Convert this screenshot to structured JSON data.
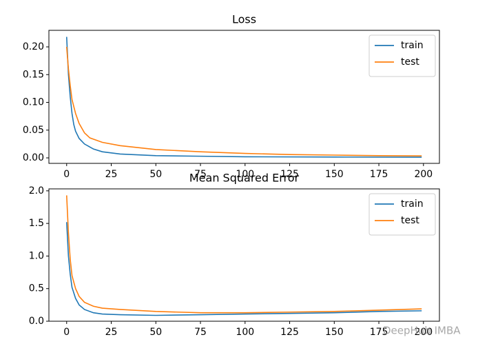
{
  "chart_data": [
    {
      "type": "line",
      "title": "Loss",
      "xlim": [
        -9.95,
        208.95
      ],
      "ylim": [
        -0.0099,
        0.2298
      ],
      "xticks": [
        0,
        25,
        50,
        75,
        100,
        125,
        150,
        175,
        200
      ],
      "yticks": [
        {
          "value": 0,
          "label": "0.00"
        },
        {
          "value": 0.05,
          "label": "0.05"
        },
        {
          "value": 0.1,
          "label": "0.10"
        },
        {
          "value": 0.15,
          "label": "0.15"
        },
        {
          "value": 0.2,
          "label": "0.20"
        }
      ],
      "legend": "upper right",
      "series": [
        {
          "name": "train",
          "color": "#1f77b4",
          "x": [
            0,
            1,
            2,
            3,
            4,
            5,
            7,
            10,
            15,
            20,
            30,
            50,
            75,
            100,
            150,
            199
          ],
          "values": [
            0.218,
            0.15,
            0.11,
            0.08,
            0.06,
            0.048,
            0.035,
            0.025,
            0.016,
            0.011,
            0.007,
            0.004,
            0.003,
            0.002,
            0.0015,
            0.0012
          ]
        },
        {
          "name": "test",
          "color": "#ff7f0e",
          "x": [
            0,
            1,
            2,
            3,
            5,
            7,
            10,
            13,
            20,
            30,
            50,
            75,
            100,
            125,
            150,
            175,
            199
          ],
          "values": [
            0.2,
            0.16,
            0.13,
            0.105,
            0.08,
            0.062,
            0.045,
            0.036,
            0.028,
            0.022,
            0.015,
            0.011,
            0.008,
            0.006,
            0.005,
            0.004,
            0.0035
          ]
        }
      ]
    },
    {
      "type": "line",
      "title": "Mean Squared Error",
      "xlim": [
        -9.95,
        208.95
      ],
      "ylim": [
        0,
        2.03
      ],
      "xticks": [
        0,
        25,
        50,
        75,
        100,
        125,
        150,
        175,
        200
      ],
      "yticks": [
        {
          "value": 0,
          "label": "0.0"
        },
        {
          "value": 0.5,
          "label": "0.5"
        },
        {
          "value": 1,
          "label": "1.0"
        },
        {
          "value": 1.5,
          "label": "1.5"
        },
        {
          "value": 2,
          "label": "2.0"
        }
      ],
      "legend": "upper right",
      "series": [
        {
          "name": "train",
          "color": "#1f77b4",
          "x": [
            0,
            1,
            2,
            3,
            5,
            7,
            10,
            15,
            20,
            30,
            50,
            75,
            100,
            125,
            150,
            175,
            199
          ],
          "values": [
            1.52,
            1.0,
            0.72,
            0.52,
            0.35,
            0.25,
            0.18,
            0.13,
            0.11,
            0.1,
            0.09,
            0.1,
            0.11,
            0.12,
            0.13,
            0.15,
            0.16
          ]
        },
        {
          "name": "test",
          "color": "#ff7f0e",
          "x": [
            0,
            1,
            2,
            3,
            5,
            7,
            10,
            15,
            20,
            30,
            50,
            75,
            100,
            125,
            150,
            175,
            199
          ],
          "values": [
            1.93,
            1.35,
            0.95,
            0.7,
            0.5,
            0.38,
            0.29,
            0.23,
            0.2,
            0.18,
            0.15,
            0.13,
            0.13,
            0.14,
            0.15,
            0.17,
            0.19
          ]
        }
      ]
    }
  ],
  "watermark": "DeepHub IMBA"
}
